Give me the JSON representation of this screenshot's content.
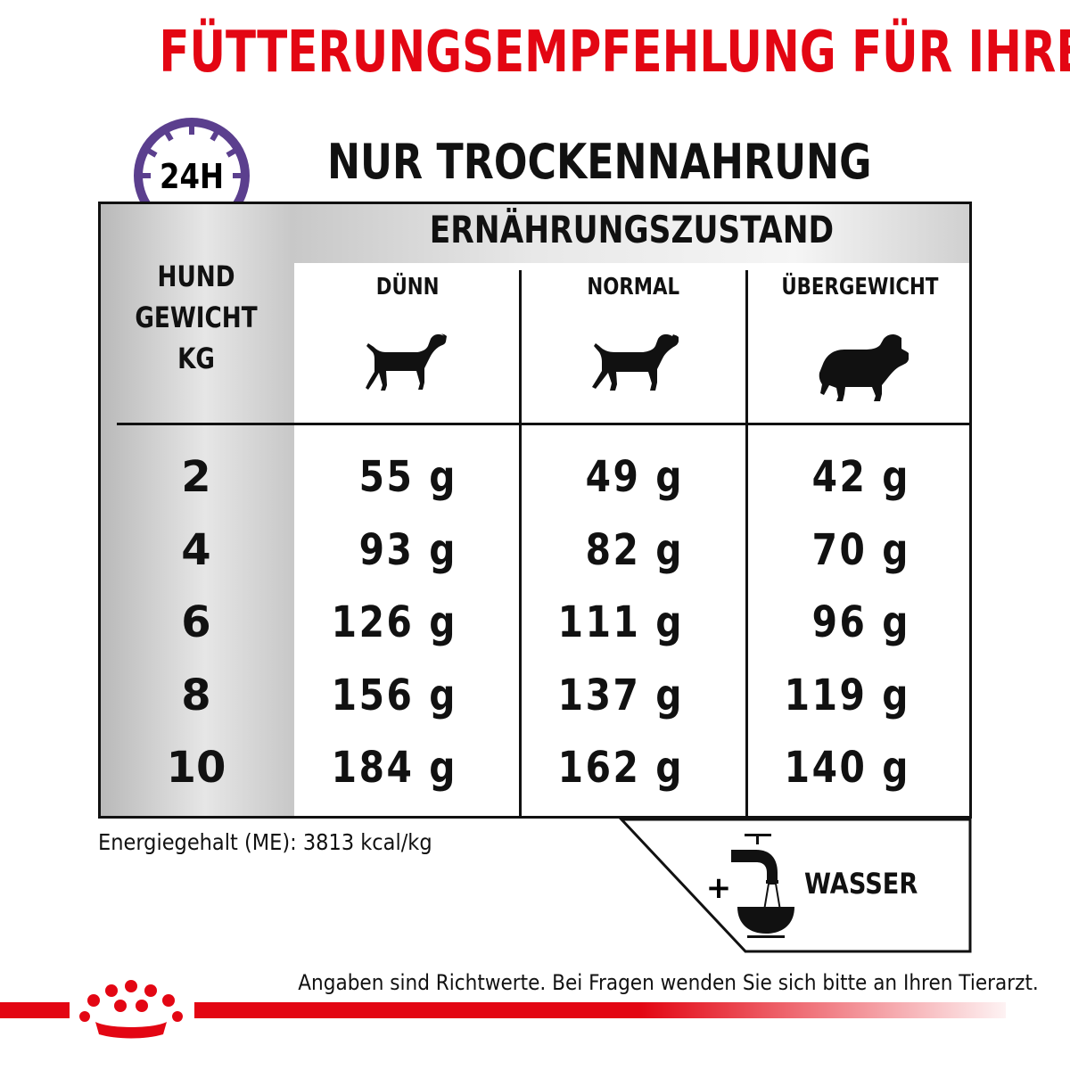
{
  "title": "FÜTTERUNGSEMPFEHLUNG FÜR IHREN HUND",
  "clock_label": "24H",
  "subtitle": "NUR TROCKENNAHRUNG",
  "table": {
    "group_header": "ERNÄHRUNGSZUSTAND",
    "weight_header": [
      "HUND",
      "GEWICHT",
      "KG"
    ],
    "columns": [
      {
        "label": "DÜNN",
        "icon": "thin-dog-icon"
      },
      {
        "label": "NORMAL",
        "icon": "normal-dog-icon"
      },
      {
        "label": "ÜBERGEWICHT",
        "icon": "overweight-dog-icon"
      }
    ],
    "rows": [
      {
        "weight": "2",
        "values": [
          "55 g",
          "49 g",
          "42 g"
        ]
      },
      {
        "weight": "4",
        "values": [
          "93 g",
          "82 g",
          "70 g"
        ]
      },
      {
        "weight": "6",
        "values": [
          "126 g",
          "111 g",
          "96 g"
        ]
      },
      {
        "weight": "8",
        "values": [
          "156 g",
          "137 g",
          "119 g"
        ]
      },
      {
        "weight": "10",
        "values": [
          "184 g",
          "162 g",
          "140 g"
        ]
      }
    ]
  },
  "energy": "Energiegehalt (ME): 3813 kcal/kg",
  "water": {
    "plus": "+",
    "label": "WASSER",
    "icon": "water-tap-bowl-icon"
  },
  "footnote": "Angaben sind Richtwerte. Bei Fragen wenden Sie sich bitte an Ihren Tierarzt.",
  "colors": {
    "brand_red": "#e30613",
    "clock_purple": "#5b3f8e",
    "text": "#111111"
  }
}
